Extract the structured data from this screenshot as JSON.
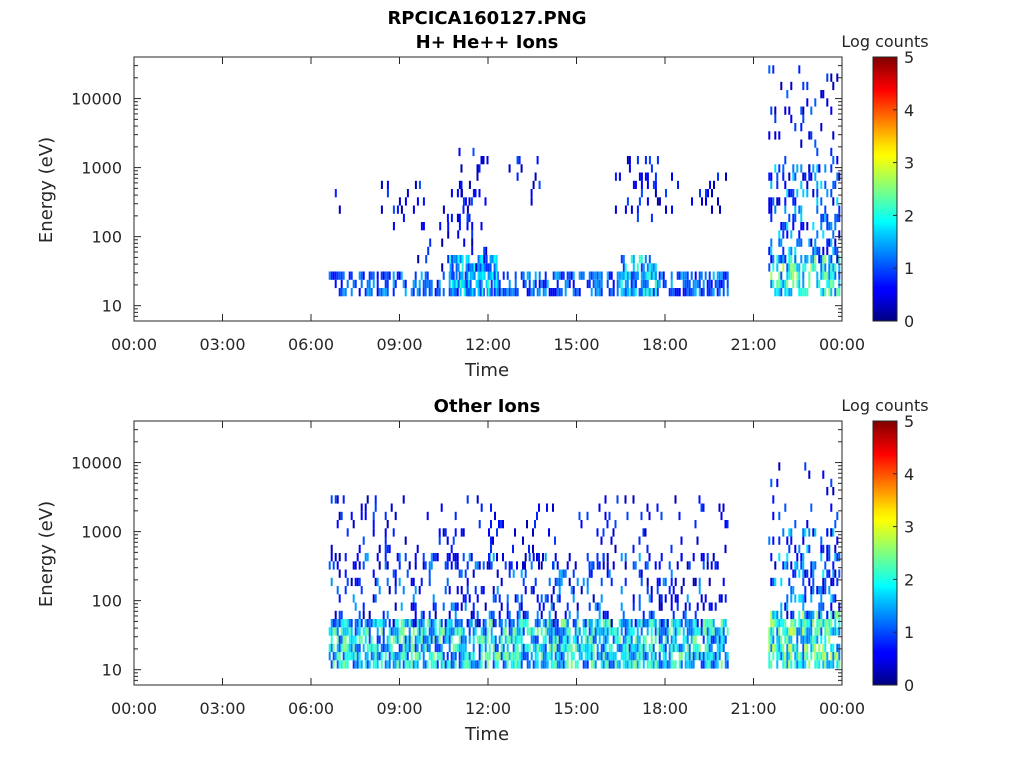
{
  "figure": {
    "title_line1": "RPCICA160127.PNG"
  },
  "colors": {
    "axis": "#262626",
    "background": "#ffffff",
    "colormap": "jet"
  },
  "chart_data": [
    {
      "type": "heatmap",
      "title": "H+ He++ Ions",
      "xlabel": "Time",
      "ylabel": "Energy (eV)",
      "x_ticks": [
        "00:00",
        "03:00",
        "06:00",
        "09:00",
        "12:00",
        "15:00",
        "18:00",
        "21:00",
        "00:00"
      ],
      "x_range_hours": [
        0,
        24
      ],
      "y_scale": "log",
      "y_range": [
        6,
        40000
      ],
      "y_ticks": [
        10,
        100,
        1000,
        10000
      ],
      "y_tick_labels": [
        "10",
        "100",
        "1000",
        "10000"
      ],
      "colorbar": {
        "label": "Log counts",
        "range": [
          0,
          5
        ],
        "ticks": [
          "0",
          "1",
          "2",
          "3",
          "4",
          "5"
        ]
      },
      "bands": [
        {
          "x_start": 6.6,
          "x_end": 20.1,
          "e_min": 15,
          "e_max": 28,
          "density": 0.55,
          "level_min": 0.5,
          "level_max": 1.6
        },
        {
          "x_start": 10.7,
          "x_end": 12.3,
          "e_min": 15,
          "e_max": 45,
          "density": 0.7,
          "level_min": 0.8,
          "level_max": 2.2
        },
        {
          "x_start": 16.5,
          "x_end": 17.7,
          "e_min": 15,
          "e_max": 45,
          "density": 0.65,
          "level_min": 0.8,
          "level_max": 2.2
        },
        {
          "x_start": 21.5,
          "x_end": 23.9,
          "e_min": 15,
          "e_max": 45,
          "density": 0.6,
          "level_min": 1.0,
          "level_max": 2.8
        },
        {
          "x_start": 21.5,
          "x_end": 23.9,
          "e_min": 50,
          "e_max": 900,
          "density": 0.3,
          "level_min": 0.3,
          "level_max": 1.8
        },
        {
          "x_start": 21.5,
          "x_end": 23.9,
          "e_min": 900,
          "e_max": 30000,
          "density": 0.08,
          "level_min": 0.2,
          "level_max": 1.2
        }
      ],
      "scatter": [
        {
          "x_start": 6.4,
          "x_end": 7.4,
          "e_min": 250,
          "e_max": 700,
          "density": 0.12
        },
        {
          "x_start": 8.3,
          "x_end": 11.5,
          "e_min": 150,
          "e_max": 600,
          "density": 0.12
        },
        {
          "x_start": 11.0,
          "x_end": 12.0,
          "e_min": 150,
          "e_max": 1500,
          "density": 0.1
        },
        {
          "x_start": 12.7,
          "x_end": 14.0,
          "e_min": 300,
          "e_max": 1200,
          "density": 0.12
        },
        {
          "x_start": 16.3,
          "x_end": 18.0,
          "e_min": 200,
          "e_max": 1200,
          "density": 0.15
        },
        {
          "x_start": 18.0,
          "x_end": 20.1,
          "e_min": 250,
          "e_max": 700,
          "density": 0.1
        },
        {
          "x_start": 9.6,
          "x_end": 12.0,
          "e_min": 40,
          "e_max": 150,
          "density": 0.08
        }
      ]
    },
    {
      "type": "heatmap",
      "title": "Other Ions",
      "xlabel": "Time",
      "ylabel": "Energy (eV)",
      "x_ticks": [
        "00:00",
        "03:00",
        "06:00",
        "09:00",
        "12:00",
        "15:00",
        "18:00",
        "21:00",
        "00:00"
      ],
      "x_range_hours": [
        0,
        24
      ],
      "y_scale": "log",
      "y_range": [
        6,
        40000
      ],
      "y_ticks": [
        10,
        100,
        1000,
        10000
      ],
      "y_tick_labels": [
        "10",
        "100",
        "1000",
        "10000"
      ],
      "colorbar": {
        "label": "Log counts",
        "range": [
          0,
          5
        ],
        "ticks": [
          "0",
          "1",
          "2",
          "3",
          "4",
          "5"
        ]
      },
      "bands": [
        {
          "x_start": 6.6,
          "x_end": 20.1,
          "e_min": 12,
          "e_max": 45,
          "density": 0.75,
          "level_min": 0.8,
          "level_max": 2.6
        },
        {
          "x_start": 6.6,
          "x_end": 20.1,
          "e_min": 45,
          "e_max": 400,
          "density": 0.2,
          "level_min": 0.2,
          "level_max": 1.5
        },
        {
          "x_start": 21.5,
          "x_end": 23.9,
          "e_min": 12,
          "e_max": 60,
          "density": 0.75,
          "level_min": 1.0,
          "level_max": 3.0
        },
        {
          "x_start": 21.5,
          "x_end": 23.9,
          "e_min": 60,
          "e_max": 1000,
          "density": 0.35,
          "level_min": 0.3,
          "level_max": 1.8
        },
        {
          "x_start": 21.5,
          "x_end": 23.9,
          "e_min": 1000,
          "e_max": 10000,
          "density": 0.08,
          "level_min": 0.2,
          "level_max": 1.2
        }
      ],
      "scatter": [
        {
          "x_start": 6.6,
          "x_end": 12.0,
          "e_min": 400,
          "e_max": 3000,
          "density": 0.08
        },
        {
          "x_start": 12.0,
          "x_end": 14.5,
          "e_min": 300,
          "e_max": 2000,
          "density": 0.08
        },
        {
          "x_start": 15.0,
          "x_end": 20.1,
          "e_min": 300,
          "e_max": 3000,
          "density": 0.08
        }
      ]
    }
  ]
}
